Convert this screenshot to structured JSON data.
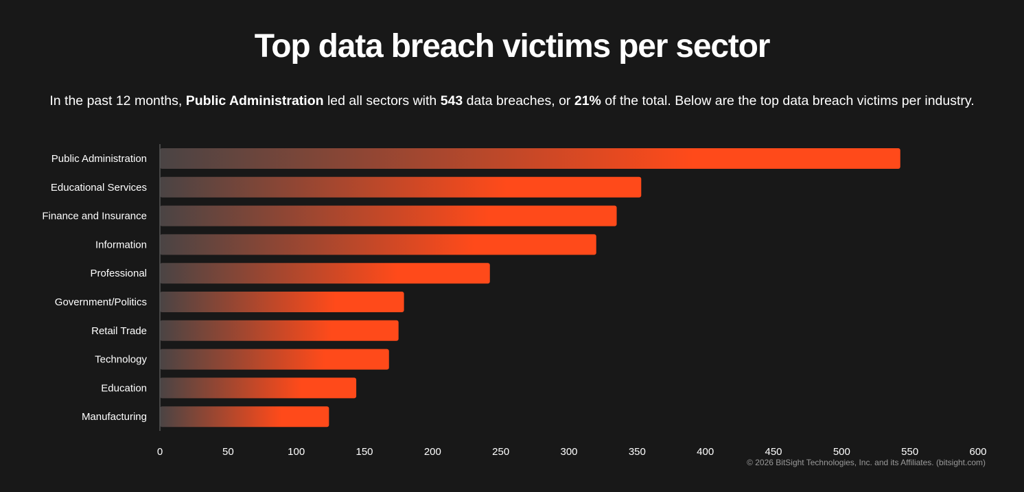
{
  "title": "Top data breach victims per sector",
  "subtitle": {
    "part1": "In the past 12 months, ",
    "bold1": "Public Administration",
    "part2": " led all sectors with ",
    "bold2": "543",
    "part3": " data breaches, or ",
    "bold3": "21%",
    "part4": " of the total. Below are the top data breach victims per industry."
  },
  "footer": "© 2026 BitSight Technologies, Inc. and its Affiliates. (bitsight.com)",
  "colors": {
    "background": "#181818",
    "bar_start": "#4a4444",
    "bar_end": "#ff4a1a",
    "axis_line": "#555555"
  },
  "chart_data": {
    "type": "bar",
    "orientation": "horizontal",
    "categories": [
      "Public Administration",
      "Educational Services",
      "Finance and Insurance",
      "Information",
      "Professional",
      "Government/Politics",
      "Retail Trade",
      "Technology",
      "Education",
      "Manufacturing"
    ],
    "values": [
      543,
      353,
      335,
      320,
      242,
      179,
      175,
      168,
      144,
      124
    ],
    "xlim": [
      0,
      600
    ],
    "xticks": [
      0,
      50,
      100,
      150,
      200,
      250,
      300,
      350,
      400,
      450,
      500,
      550,
      600
    ],
    "grid": false,
    "legend": "none"
  }
}
